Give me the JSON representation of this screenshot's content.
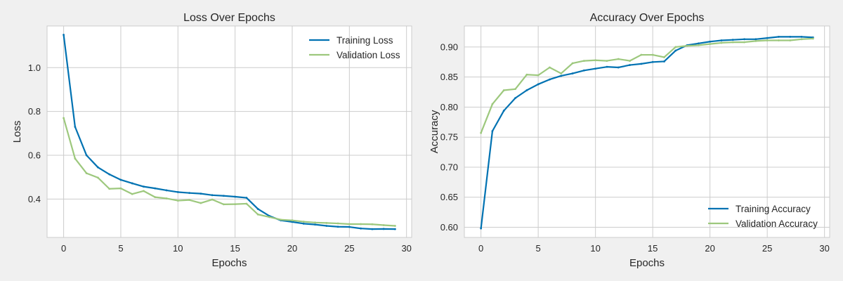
{
  "colors": {
    "figure_bg": "#f0f0f0",
    "axes_bg": "#ffffff",
    "grid": "#cccccc",
    "train": "#0072b2",
    "val": "#9dc87d"
  },
  "chart_data": [
    {
      "type": "line",
      "title": "Loss Over Epochs",
      "xlabel": "Epochs",
      "ylabel": "Loss",
      "xlim": [
        -1.45,
        30.45
      ],
      "ylim": [
        0.225,
        1.19
      ],
      "xticks": [
        0,
        5,
        10,
        15,
        20,
        25,
        30
      ],
      "yticks": [
        0.4,
        0.6,
        0.8,
        1.0
      ],
      "ytick_labels": [
        "0.4",
        "0.6",
        "0.8",
        "1.0"
      ],
      "grid": true,
      "legend_position": "top-right",
      "x": [
        0,
        1,
        2,
        3,
        4,
        5,
        6,
        7,
        8,
        9,
        10,
        11,
        12,
        13,
        14,
        15,
        16,
        17,
        18,
        19,
        20,
        21,
        22,
        23,
        24,
        25,
        26,
        27,
        28,
        29
      ],
      "series": [
        {
          "name": "Training Loss",
          "color": "#0072b2",
          "values": [
            1.15,
            0.73,
            0.6,
            0.545,
            0.513,
            0.488,
            0.472,
            0.457,
            0.449,
            0.44,
            0.432,
            0.428,
            0.425,
            0.418,
            0.415,
            0.411,
            0.406,
            0.355,
            0.323,
            0.303,
            0.296,
            0.288,
            0.284,
            0.278,
            0.274,
            0.273,
            0.266,
            0.263,
            0.264,
            0.263
          ]
        },
        {
          "name": "Validation Loss",
          "color": "#9dc87d",
          "values": [
            0.77,
            0.585,
            0.518,
            0.498,
            0.447,
            0.449,
            0.423,
            0.437,
            0.409,
            0.403,
            0.393,
            0.396,
            0.382,
            0.398,
            0.376,
            0.377,
            0.379,
            0.33,
            0.318,
            0.306,
            0.303,
            0.297,
            0.293,
            0.291,
            0.289,
            0.286,
            0.286,
            0.285,
            0.281,
            0.278
          ]
        }
      ]
    },
    {
      "type": "line",
      "title": "Accuracy Over Epochs",
      "xlabel": "Epochs",
      "ylabel": "Accuracy",
      "xlim": [
        -1.45,
        30.45
      ],
      "ylim": [
        0.583,
        0.935
      ],
      "xticks": [
        0,
        5,
        10,
        15,
        20,
        25,
        30
      ],
      "yticks": [
        0.6,
        0.65,
        0.7,
        0.75,
        0.8,
        0.85,
        0.9
      ],
      "ytick_labels": [
        "0.60",
        "0.65",
        "0.70",
        "0.75",
        "0.80",
        "0.85",
        "0.90"
      ],
      "grid": true,
      "legend_position": "bottom-right",
      "x": [
        0,
        1,
        2,
        3,
        4,
        5,
        6,
        7,
        8,
        9,
        10,
        11,
        12,
        13,
        14,
        15,
        16,
        17,
        18,
        19,
        20,
        21,
        22,
        23,
        24,
        25,
        26,
        27,
        28,
        29
      ],
      "series": [
        {
          "name": "Training Accuracy",
          "color": "#0072b2",
          "values": [
            0.598,
            0.76,
            0.794,
            0.815,
            0.828,
            0.838,
            0.846,
            0.852,
            0.856,
            0.861,
            0.864,
            0.867,
            0.866,
            0.87,
            0.872,
            0.875,
            0.876,
            0.894,
            0.903,
            0.906,
            0.909,
            0.911,
            0.912,
            0.913,
            0.913,
            0.915,
            0.917,
            0.917,
            0.917,
            0.916
          ]
        },
        {
          "name": "Validation Accuracy",
          "color": "#9dc87d",
          "values": [
            0.757,
            0.805,
            0.828,
            0.83,
            0.854,
            0.853,
            0.866,
            0.856,
            0.873,
            0.877,
            0.878,
            0.877,
            0.88,
            0.877,
            0.887,
            0.887,
            0.883,
            0.9,
            0.902,
            0.903,
            0.905,
            0.907,
            0.908,
            0.908,
            0.91,
            0.911,
            0.911,
            0.911,
            0.913,
            0.914
          ]
        }
      ]
    }
  ]
}
